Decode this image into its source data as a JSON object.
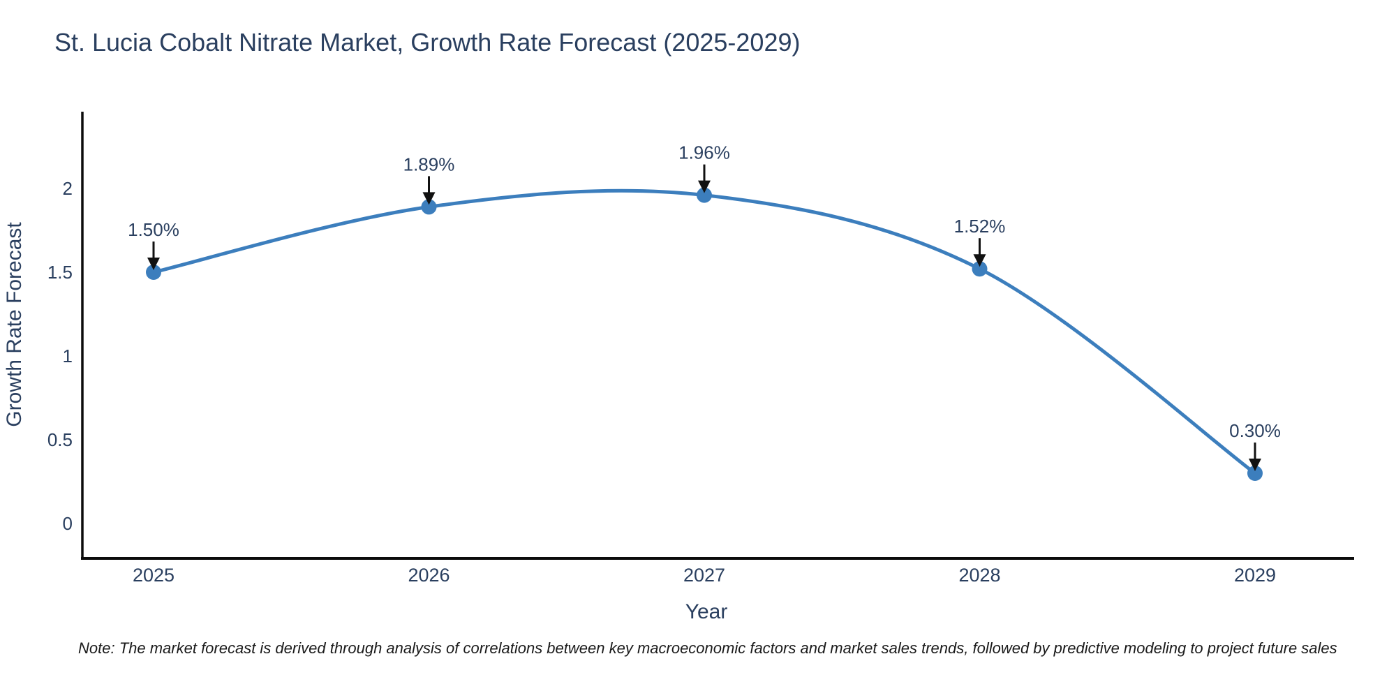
{
  "title": "St. Lucia Cobalt Nitrate Market, Growth Rate Forecast (2025-2029)",
  "note": "Note: The market forecast is derived through analysis of correlations between key macroeconomic factors and market sales trends, followed by predictive modeling to project future sales",
  "chart_data": {
    "type": "line",
    "title": "St. Lucia Cobalt Nitrate Market, Growth Rate Forecast (2025-2029)",
    "categories": [
      "2025",
      "2026",
      "2027",
      "2028",
      "2029"
    ],
    "series": [
      {
        "name": "Growth Rate Forecast",
        "values": [
          1.5,
          1.89,
          1.96,
          1.52,
          0.3
        ]
      }
    ],
    "point_labels": [
      "1.50%",
      "1.89%",
      "1.96%",
      "1.52%",
      "0.30%"
    ],
    "xlabel": "Year",
    "ylabel": "Growth Rate Forecast",
    "yticks": [
      0,
      0.5,
      1,
      1.5,
      2
    ],
    "ylim": [
      -0.21,
      2.46
    ],
    "line_shape": "spline",
    "grid": false,
    "legend": "none",
    "annotation_style": "value-label-above-point-with-down-arrow",
    "colors": {
      "line": "#3c7ebd",
      "marker": "#3c7ebd",
      "text": "#2a3f5f",
      "axis": "#0c0c0c",
      "arrow": "#111111",
      "note_text": "#1a1a1a"
    }
  }
}
